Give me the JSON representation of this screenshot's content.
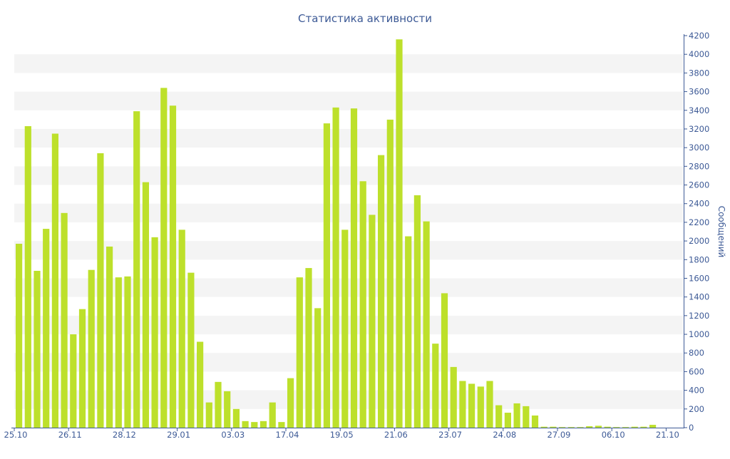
{
  "chart_data": {
    "type": "bar",
    "title": "Статистика активности",
    "xlabel": "",
    "ylabel": "Сообщений",
    "ylim": [
      0,
      4200
    ],
    "yticks": [
      0,
      200,
      400,
      600,
      800,
      1000,
      1200,
      1400,
      1600,
      1800,
      2000,
      2200,
      2400,
      2600,
      2800,
      3000,
      3200,
      3400,
      3600,
      3800,
      4000,
      4200
    ],
    "x_tick_labels": [
      "25.10",
      "26.11",
      "28.12",
      "29.01",
      "03.03",
      "17.04",
      "19.05",
      "21.06",
      "23.07",
      "24.08",
      "27.09",
      "06.10",
      "21.10"
    ],
    "x_tick_positions": [
      0,
      6,
      12,
      18,
      24,
      30,
      36,
      42,
      48,
      54,
      60,
      66,
      72
    ],
    "y_axis_position": "right",
    "grid": "alternating horizontal bands",
    "values": [
      1970,
      3230,
      1680,
      2130,
      3150,
      2300,
      1000,
      1270,
      1690,
      2940,
      1940,
      1610,
      1620,
      3390,
      2630,
      2040,
      3640,
      3450,
      2120,
      1660,
      920,
      270,
      490,
      390,
      200,
      70,
      60,
      70,
      270,
      60,
      530,
      1610,
      1710,
      1280,
      3260,
      3430,
      2120,
      3420,
      2640,
      2280,
      2920,
      3300,
      4160,
      2050,
      2490,
      2210,
      900,
      1440,
      650,
      500,
      470,
      440,
      500,
      240,
      160,
      260,
      230,
      130,
      10,
      10,
      5,
      5,
      5,
      15,
      20,
      10,
      5,
      5,
      10,
      10,
      30
    ],
    "bar_color": "#bde02b",
    "band_color": "#f4f4f4",
    "axis_text_color": "#3d5a96"
  }
}
